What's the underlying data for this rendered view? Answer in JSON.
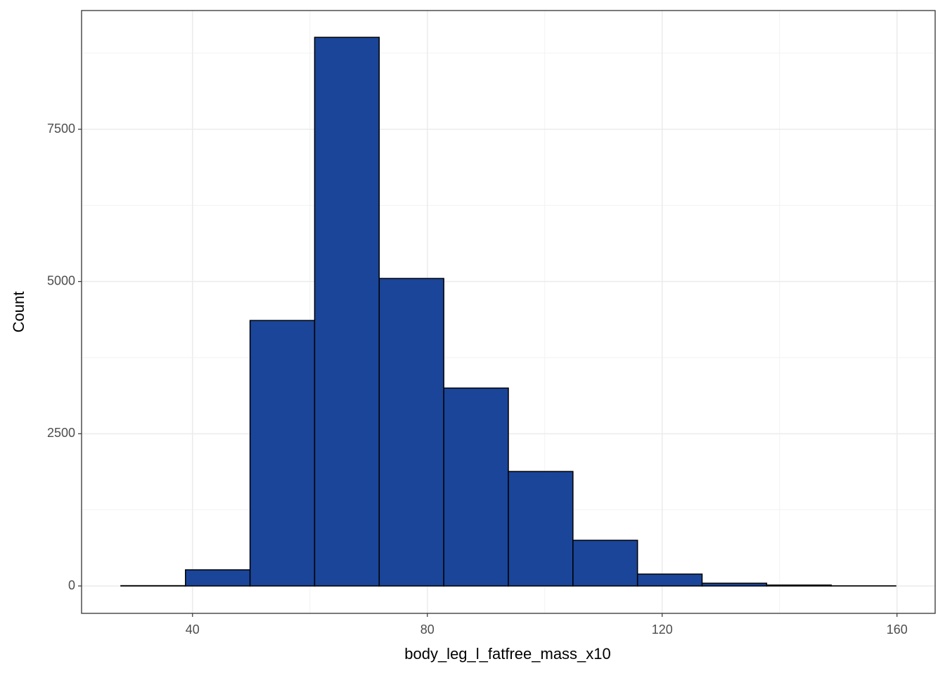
{
  "chart_data": {
    "type": "histogram",
    "x_label": "body_leg_l_fatfree_mass_x10",
    "y_label": "Count",
    "bins": [
      27.8,
      38.8,
      49.8,
      60.8,
      71.8,
      82.8,
      93.8,
      104.8,
      115.8,
      126.8,
      137.8,
      148.8,
      159.8
    ],
    "values": [
      5,
      265,
      4360,
      9010,
      5050,
      3250,
      1880,
      750,
      195,
      45,
      15,
      2
    ],
    "color": "#1a4599",
    "xlim": [
      21.1,
      166.5
    ],
    "xticks": [
      40,
      80,
      120,
      160
    ],
    "ylim": [
      -450,
      9450
    ],
    "yticks": [
      0,
      2500,
      5000,
      7500
    ],
    "grid": true
  }
}
